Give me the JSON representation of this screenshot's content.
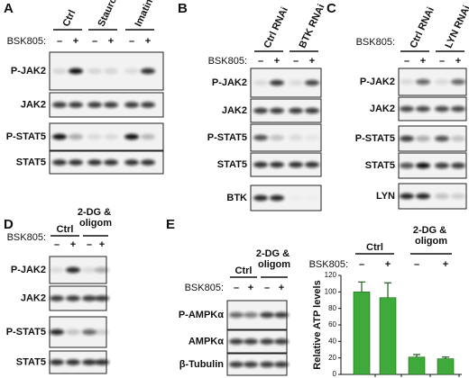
{
  "panels": [
    {
      "label": "A",
      "groups": [
        "Ctrl",
        "Staurosp.",
        "Imatinib"
      ],
      "treatment": "BSK805:",
      "lanes": [
        "–",
        "+",
        "–",
        "+",
        "–",
        "+"
      ],
      "rows": [
        "P-JAK2",
        "JAK2",
        "P-STAT5",
        "STAT5"
      ]
    },
    {
      "label": "B",
      "groups": [
        "Ctrl RNAi",
        "BTK RNAi"
      ],
      "treatment": "BSK805:",
      "lanes": [
        "–",
        "+",
        "–",
        "+"
      ],
      "rows": [
        "P-JAK2",
        "JAK2",
        "P-STAT5",
        "STAT5",
        "BTK"
      ]
    },
    {
      "label": "C",
      "groups": [
        "Ctrl RNAi",
        "LYN RNAi"
      ],
      "treatment": "BSK805:",
      "lanes": [
        "–",
        "+",
        "–",
        "+"
      ],
      "rows": [
        "P-JAK2",
        "JAK2",
        "P-STAT5",
        "STAT5",
        "LYN"
      ]
    },
    {
      "label": "D",
      "groups": [
        "Ctrl",
        "2-DG & oligom"
      ],
      "treatment": "BSK805:",
      "lanes": [
        "–",
        "+",
        "–",
        "+"
      ],
      "rows": [
        "P-JAK2",
        "JAK2",
        "P-STAT5",
        "STAT5"
      ]
    },
    {
      "label": "E",
      "groups": [
        "Ctrl",
        "2-DG & oligom"
      ],
      "treatment": "BSK805:",
      "lanes": [
        "–",
        "+",
        "–",
        "+"
      ],
      "rows": [
        "P-AMPKα",
        "AMPKα",
        "β-Tubulin"
      ]
    }
  ],
  "chart_data": {
    "type": "bar",
    "ylabel": "Relative ATP levels",
    "groups": [
      "Ctrl",
      "2-DG & oligom"
    ],
    "treatment": "BSK805:",
    "categories": [
      "–",
      "+",
      "–",
      "+"
    ],
    "values": [
      100,
      93,
      21,
      19
    ],
    "errors": [
      12,
      18,
      3,
      2
    ],
    "color": "#3daa3a",
    "ylim": [
      0,
      120
    ],
    "yticks": [
      0,
      20,
      40,
      60,
      80,
      100,
      120
    ]
  }
}
